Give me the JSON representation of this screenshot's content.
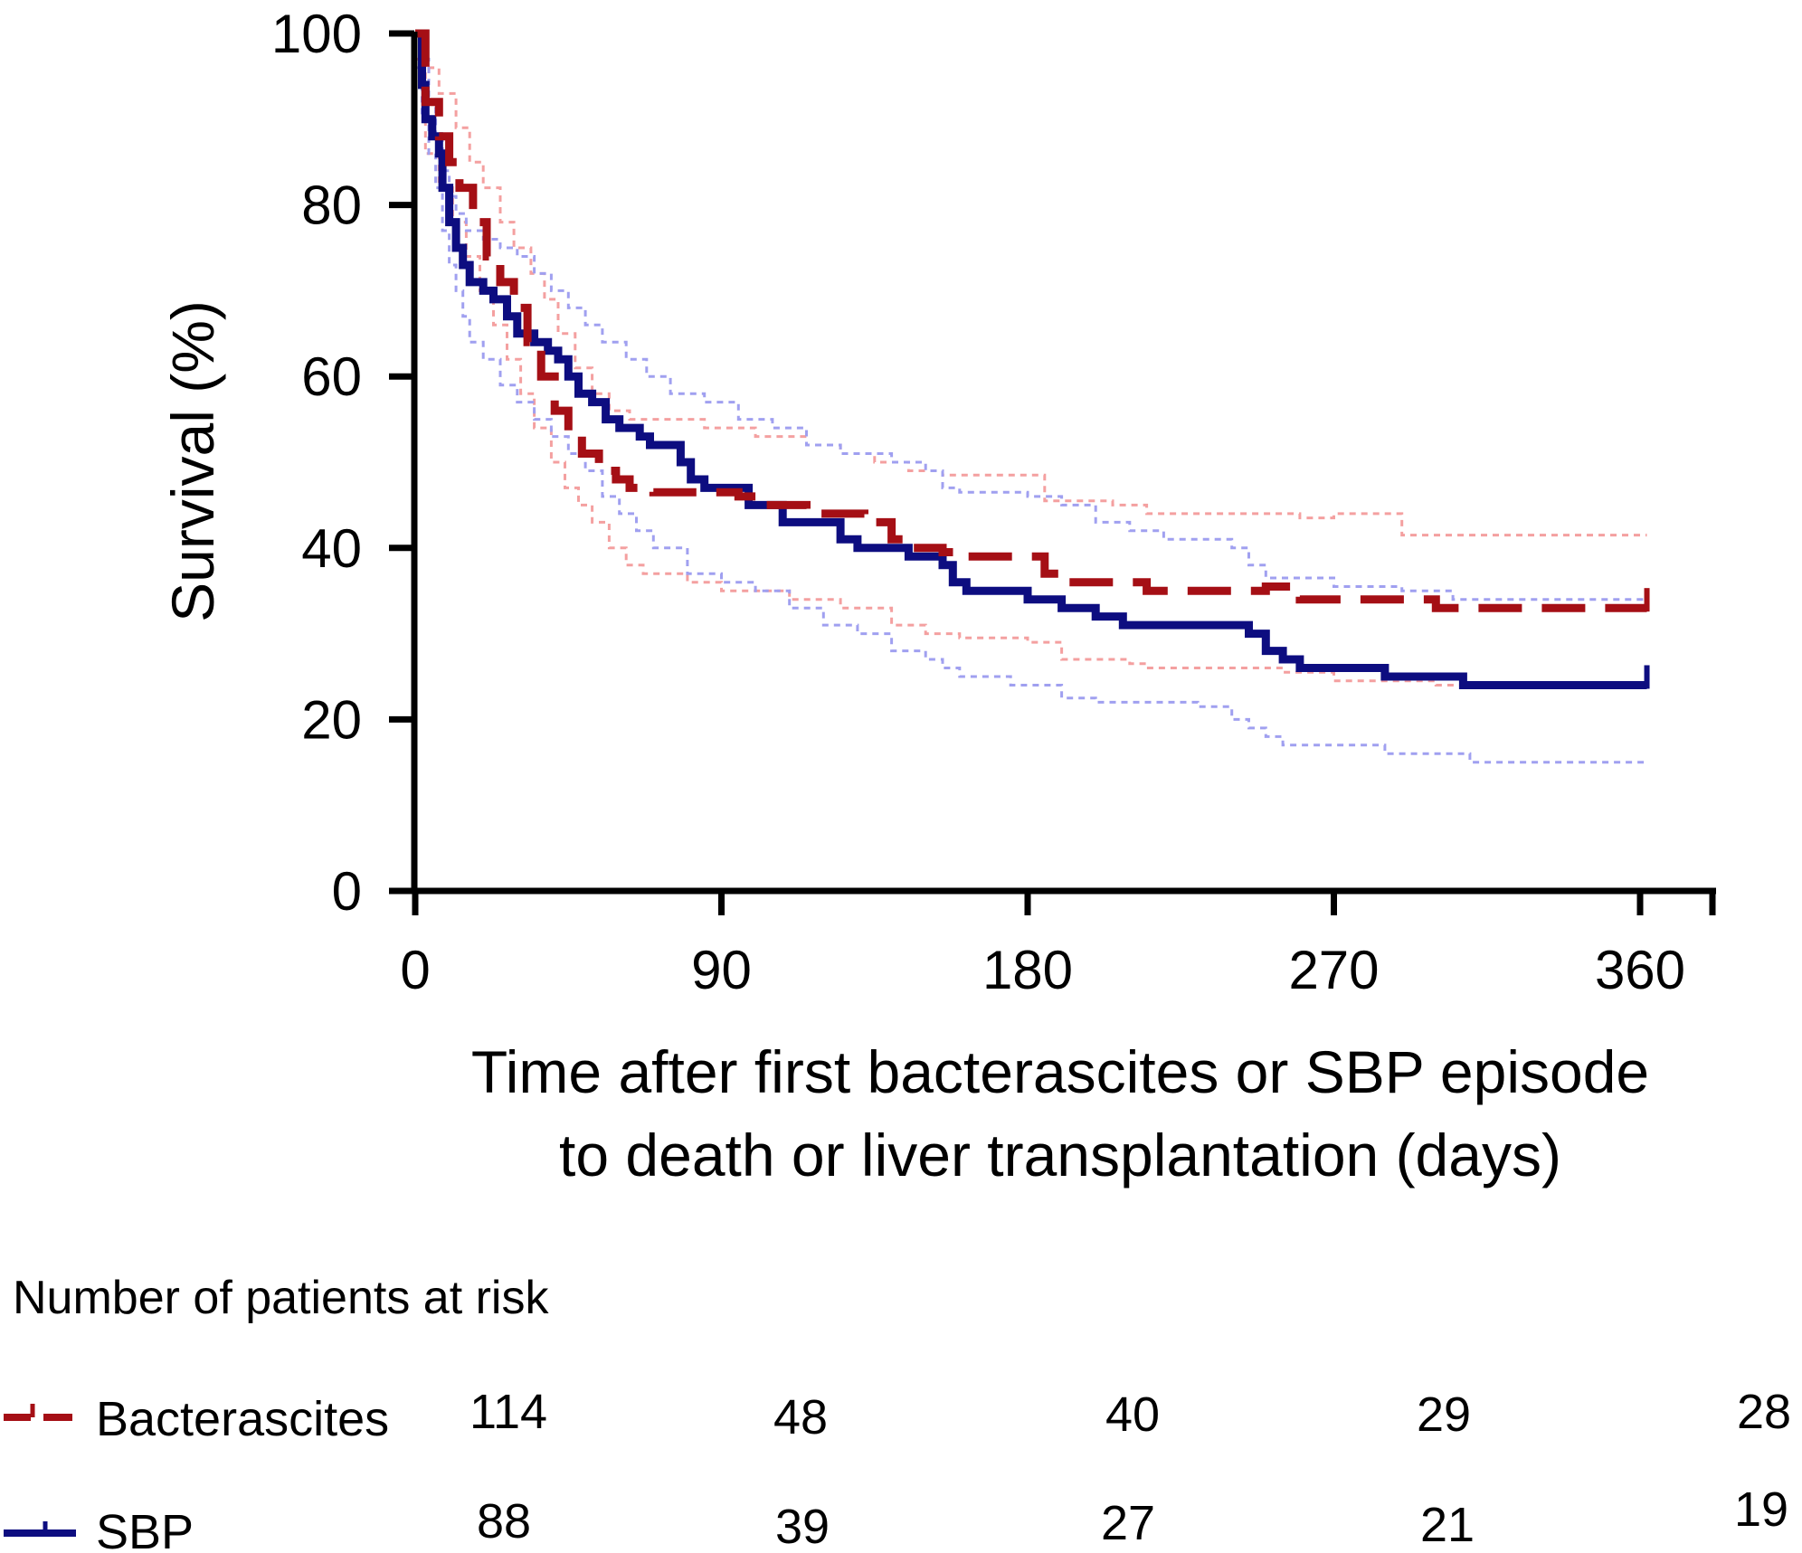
{
  "chart_data": {
    "type": "line",
    "subtype": "kaplan-meier step curves with confidence bands",
    "ylabel": "Survival (%)",
    "xlabel_lines": [
      "Time after first bacterascites or SBP episode",
      "to death or liver transplantation (days)"
    ],
    "xlim": [
      0,
      362
    ],
    "ylim": [
      0,
      100
    ],
    "x_ticks": [
      0,
      90,
      180,
      270,
      360
    ],
    "y_ticks": [
      0,
      20,
      40,
      60,
      80,
      100
    ],
    "series": [
      {
        "name": "Bacterascites",
        "color": "#a50f15",
        "ci_color": "#f4a0a0",
        "line_style": "dashed",
        "points": [
          [
            0,
            100
          ],
          [
            3,
            92
          ],
          [
            7,
            88
          ],
          [
            10,
            85
          ],
          [
            13,
            82
          ],
          [
            17,
            78
          ],
          [
            21,
            74
          ],
          [
            25,
            71
          ],
          [
            29,
            68
          ],
          [
            33,
            64
          ],
          [
            37,
            60
          ],
          [
            41,
            56
          ],
          [
            45,
            53
          ],
          [
            49,
            51
          ],
          [
            54,
            49
          ],
          [
            59,
            48
          ],
          [
            63,
            47
          ],
          [
            70,
            46.5
          ],
          [
            80,
            46.5
          ],
          [
            95,
            46
          ],
          [
            100,
            45
          ],
          [
            115,
            44
          ],
          [
            132,
            43
          ],
          [
            140,
            41
          ],
          [
            145,
            40
          ],
          [
            155,
            39.5
          ],
          [
            160,
            39
          ],
          [
            175,
            39
          ],
          [
            185,
            37
          ],
          [
            190,
            36
          ],
          [
            210,
            36
          ],
          [
            215,
            35
          ],
          [
            245,
            35
          ],
          [
            250,
            35.5
          ],
          [
            260,
            34
          ],
          [
            290,
            34
          ],
          [
            300,
            33
          ],
          [
            362,
            33
          ]
        ],
        "ci_upper": [
          [
            0,
            100
          ],
          [
            3,
            96
          ],
          [
            7,
            93
          ],
          [
            12,
            89
          ],
          [
            16,
            85
          ],
          [
            20,
            82
          ],
          [
            25,
            78
          ],
          [
            29,
            75
          ],
          [
            34,
            72
          ],
          [
            38,
            69
          ],
          [
            42,
            65
          ],
          [
            47,
            61
          ],
          [
            52,
            58
          ],
          [
            57,
            56
          ],
          [
            63,
            55
          ],
          [
            72,
            55
          ],
          [
            85,
            54
          ],
          [
            100,
            53
          ],
          [
            115,
            52
          ],
          [
            125,
            51
          ],
          [
            135,
            50
          ],
          [
            145,
            49
          ],
          [
            155,
            48.5
          ],
          [
            170,
            48.5
          ],
          [
            185,
            45.5
          ],
          [
            205,
            45
          ],
          [
            215,
            44
          ],
          [
            260,
            43.5
          ],
          [
            270,
            44
          ],
          [
            290,
            41.5
          ],
          [
            362,
            41.5
          ]
        ],
        "ci_lower": [
          [
            0,
            97
          ],
          [
            3,
            86
          ],
          [
            7,
            82
          ],
          [
            11,
            78
          ],
          [
            15,
            74
          ],
          [
            19,
            70
          ],
          [
            23,
            66
          ],
          [
            27,
            62
          ],
          [
            31,
            58
          ],
          [
            35,
            54
          ],
          [
            40,
            50
          ],
          [
            44,
            47
          ],
          [
            48,
            45
          ],
          [
            52,
            43
          ],
          [
            57,
            40
          ],
          [
            62,
            38
          ],
          [
            67,
            37
          ],
          [
            80,
            36
          ],
          [
            90,
            35
          ],
          [
            110,
            34
          ],
          [
            125,
            33
          ],
          [
            140,
            31
          ],
          [
            150,
            30
          ],
          [
            160,
            29.5
          ],
          [
            180,
            29
          ],
          [
            190,
            27
          ],
          [
            210,
            26.5
          ],
          [
            215,
            26
          ],
          [
            255,
            25.5
          ],
          [
            270,
            24.5
          ],
          [
            300,
            24
          ],
          [
            362,
            24
          ]
        ]
      },
      {
        "name": "SBP",
        "color": "#0d0d80",
        "ci_color": "#a0a0f0",
        "line_style": "solid",
        "points": [
          [
            0,
            100
          ],
          [
            2,
            94
          ],
          [
            3,
            90
          ],
          [
            5,
            88
          ],
          [
            7,
            86
          ],
          [
            8,
            82
          ],
          [
            10,
            78
          ],
          [
            12,
            75
          ],
          [
            14,
            73
          ],
          [
            16,
            71
          ],
          [
            20,
            70
          ],
          [
            23,
            69
          ],
          [
            27,
            67
          ],
          [
            30,
            65
          ],
          [
            35,
            64
          ],
          [
            39,
            63
          ],
          [
            42,
            62
          ],
          [
            45,
            60
          ],
          [
            48,
            58
          ],
          [
            52,
            57
          ],
          [
            56,
            55
          ],
          [
            60,
            54
          ],
          [
            66,
            53
          ],
          [
            69,
            52
          ],
          [
            78,
            50
          ],
          [
            81,
            48
          ],
          [
            85,
            47
          ],
          [
            98,
            45
          ],
          [
            108,
            43
          ],
          [
            125,
            41
          ],
          [
            130,
            40
          ],
          [
            145,
            39
          ],
          [
            155,
            38
          ],
          [
            158,
            36
          ],
          [
            162,
            35
          ],
          [
            175,
            35
          ],
          [
            180,
            34
          ],
          [
            190,
            33
          ],
          [
            200,
            32
          ],
          [
            208,
            31
          ],
          [
            240,
            31
          ],
          [
            245,
            30
          ],
          [
            250,
            28
          ],
          [
            255,
            27
          ],
          [
            260,
            26
          ],
          [
            280,
            26
          ],
          [
            285,
            25
          ],
          [
            305,
            25
          ],
          [
            308,
            24
          ],
          [
            362,
            24
          ]
        ],
        "ci_upper": [
          [
            0,
            100
          ],
          [
            2,
            97
          ],
          [
            4,
            92
          ],
          [
            6,
            88
          ],
          [
            8,
            84
          ],
          [
            10,
            81
          ],
          [
            12,
            79
          ],
          [
            15,
            77
          ],
          [
            20,
            76
          ],
          [
            25,
            75
          ],
          [
            30,
            74
          ],
          [
            35,
            72
          ],
          [
            40,
            70
          ],
          [
            45,
            68
          ],
          [
            50,
            66
          ],
          [
            55,
            64
          ],
          [
            62,
            62
          ],
          [
            68,
            60
          ],
          [
            75,
            58
          ],
          [
            85,
            57
          ],
          [
            95,
            55
          ],
          [
            105,
            54
          ],
          [
            115,
            52
          ],
          [
            125,
            51
          ],
          [
            140,
            50
          ],
          [
            150,
            49
          ],
          [
            155,
            47
          ],
          [
            160,
            46.5
          ],
          [
            180,
            46
          ],
          [
            190,
            45
          ],
          [
            200,
            43
          ],
          [
            210,
            42
          ],
          [
            220,
            41
          ],
          [
            240,
            40
          ],
          [
            245,
            38
          ],
          [
            250,
            36.5
          ],
          [
            270,
            35.5
          ],
          [
            290,
            35
          ],
          [
            305,
            34
          ],
          [
            362,
            34
          ]
        ],
        "ci_lower": [
          [
            0,
            96
          ],
          [
            2,
            90
          ],
          [
            4,
            86
          ],
          [
            6,
            82
          ],
          [
            8,
            77
          ],
          [
            10,
            73
          ],
          [
            12,
            70
          ],
          [
            14,
            67
          ],
          [
            16,
            64
          ],
          [
            20,
            62
          ],
          [
            25,
            59
          ],
          [
            30,
            57
          ],
          [
            35,
            55
          ],
          [
            40,
            53
          ],
          [
            45,
            51
          ],
          [
            50,
            49
          ],
          [
            55,
            46
          ],
          [
            60,
            44
          ],
          [
            65,
            42
          ],
          [
            70,
            40
          ],
          [
            80,
            37
          ],
          [
            90,
            36
          ],
          [
            100,
            35
          ],
          [
            110,
            33
          ],
          [
            120,
            31
          ],
          [
            130,
            30
          ],
          [
            140,
            28
          ],
          [
            150,
            27
          ],
          [
            155,
            26
          ],
          [
            160,
            25
          ],
          [
            175,
            24
          ],
          [
            190,
            22.5
          ],
          [
            200,
            22
          ],
          [
            230,
            21.5
          ],
          [
            240,
            20
          ],
          [
            245,
            19
          ],
          [
            250,
            18
          ],
          [
            255,
            17
          ],
          [
            275,
            17
          ],
          [
            285,
            16
          ],
          [
            310,
            15
          ],
          [
            362,
            15
          ]
        ]
      }
    ],
    "risk_table": {
      "title": "Number of patients at risk",
      "rows": [
        {
          "label": "Bacterascites",
          "values": [
            "114",
            "48",
            "40",
            "29",
            "28"
          ]
        },
        {
          "label": "SBP",
          "values": [
            "88",
            "39",
            "27",
            "21",
            "19"
          ]
        }
      ]
    }
  }
}
